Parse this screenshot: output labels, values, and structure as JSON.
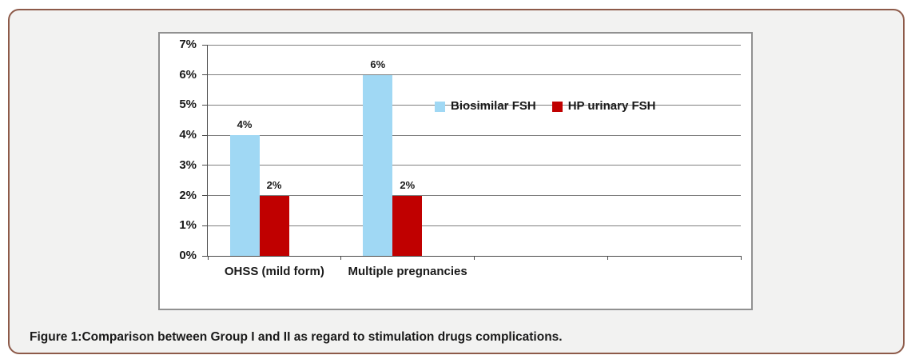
{
  "caption": "Figure 1:Comparison between Group I and II as regard to stimulation drugs complications.",
  "chart_data": {
    "type": "bar",
    "categories": [
      "OHSS (mild form)",
      "Multiple pregnancies"
    ],
    "series": [
      {
        "name": "Biosimilar FSH",
        "color": "#A0D8F4",
        "values": [
          4,
          6
        ]
      },
      {
        "name": "HP urinary FSH",
        "color": "#C00000",
        "values": [
          2,
          2
        ]
      }
    ],
    "value_suffix": "%",
    "data_labels": true,
    "title": "",
    "xlabel": "",
    "ylabel": "",
    "ylim": [
      0,
      7
    ],
    "ytick_step": 1,
    "ytick_labels": [
      "0%",
      "1%",
      "2%",
      "3%",
      "4%",
      "5%",
      "6%",
      "7%"
    ],
    "x_axis_slot_count": 4,
    "grid": true,
    "legend_position": "inside-top-right"
  },
  "style_colors": {
    "card_border": "#8D5A49",
    "card_background": "#F2F2F1",
    "panel_border": "#919191",
    "gridline": "#7F7F7F",
    "axis": "#4A4A4A",
    "text": "#1A1A1A"
  }
}
